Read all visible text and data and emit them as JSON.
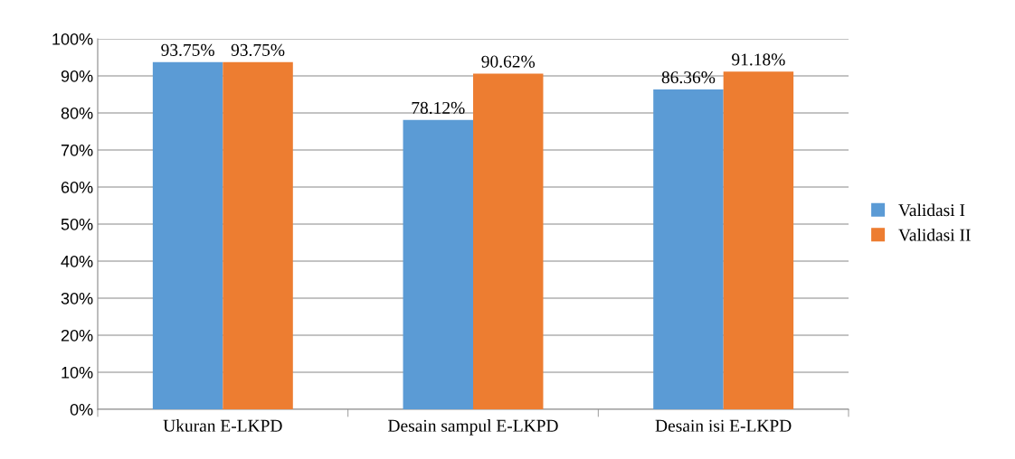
{
  "chart_data": {
    "type": "bar",
    "categories": [
      "Ukuran E-LKPD",
      "Desain sampul E-LKPD",
      "Desain isi E-LKPD"
    ],
    "series": [
      {
        "name": "Validasi I",
        "color": "#5b9bd5",
        "values": [
          93.75,
          78.12,
          86.36
        ],
        "value_labels": [
          "93.75%",
          "78.12%",
          "86.36%"
        ]
      },
      {
        "name": "Validasi II",
        "color": "#ed7d31",
        "values": [
          93.75,
          90.62,
          91.18
        ],
        "value_labels": [
          "93.75%",
          "90.62%",
          "91.18%"
        ]
      }
    ],
    "ylim": [
      0,
      100
    ],
    "yticks": [
      {
        "value": 0,
        "label": "0%"
      },
      {
        "value": 10,
        "label": "10%"
      },
      {
        "value": 20,
        "label": "20%"
      },
      {
        "value": 30,
        "label": "30%"
      },
      {
        "value": 40,
        "label": "40%"
      },
      {
        "value": 50,
        "label": "50%"
      },
      {
        "value": 60,
        "label": "60%"
      },
      {
        "value": 70,
        "label": "70%"
      },
      {
        "value": 80,
        "label": "80%"
      },
      {
        "value": 90,
        "label": "90%"
      },
      {
        "value": 100,
        "label": "100%"
      }
    ],
    "grid": "y",
    "legend": "right"
  }
}
